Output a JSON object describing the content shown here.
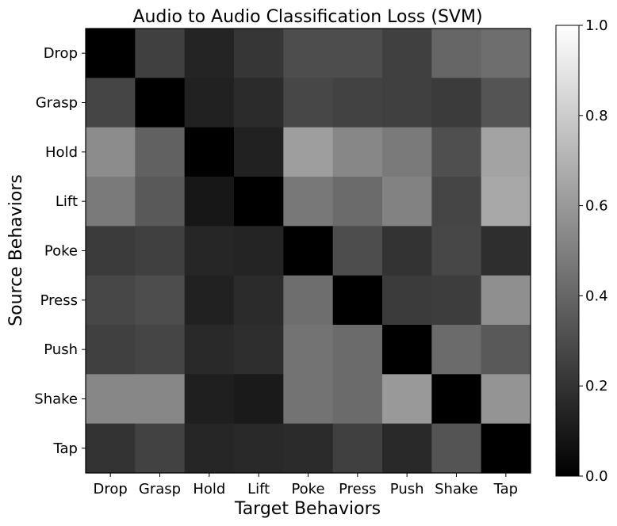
{
  "chart_data": {
    "type": "heatmap",
    "title": "Audio to Audio Classification Loss (SVM)",
    "xlabel": "Target Behaviors",
    "ylabel": "Source Behaviors",
    "x_categories": [
      "Drop",
      "Grasp",
      "Hold",
      "Lift",
      "Poke",
      "Press",
      "Push",
      "Shake",
      "Tap"
    ],
    "y_categories": [
      "Drop",
      "Grasp",
      "Hold",
      "Lift",
      "Poke",
      "Press",
      "Push",
      "Shake",
      "Tap"
    ],
    "colormap": "gray",
    "vmin": 0.0,
    "vmax": 1.0,
    "colorbar_ticks": [
      "0.0",
      "0.2",
      "0.4",
      "0.6",
      "0.8",
      "1.0"
    ],
    "values": [
      [
        0.0,
        0.25,
        0.14,
        0.21,
        0.3,
        0.3,
        0.25,
        0.4,
        0.43
      ],
      [
        0.27,
        0.0,
        0.13,
        0.17,
        0.28,
        0.26,
        0.25,
        0.23,
        0.33
      ],
      [
        0.55,
        0.38,
        0.0,
        0.13,
        0.62,
        0.53,
        0.48,
        0.31,
        0.64
      ],
      [
        0.48,
        0.35,
        0.09,
        0.0,
        0.47,
        0.42,
        0.51,
        0.27,
        0.66
      ],
      [
        0.23,
        0.25,
        0.15,
        0.14,
        0.0,
        0.3,
        0.2,
        0.28,
        0.18
      ],
      [
        0.28,
        0.3,
        0.13,
        0.17,
        0.43,
        0.0,
        0.23,
        0.24,
        0.56
      ],
      [
        0.25,
        0.27,
        0.16,
        0.18,
        0.45,
        0.42,
        0.0,
        0.42,
        0.35
      ],
      [
        0.53,
        0.53,
        0.12,
        0.1,
        0.45,
        0.42,
        0.6,
        0.0,
        0.58
      ],
      [
        0.2,
        0.26,
        0.15,
        0.16,
        0.17,
        0.25,
        0.16,
        0.33,
        0.0
      ]
    ]
  }
}
